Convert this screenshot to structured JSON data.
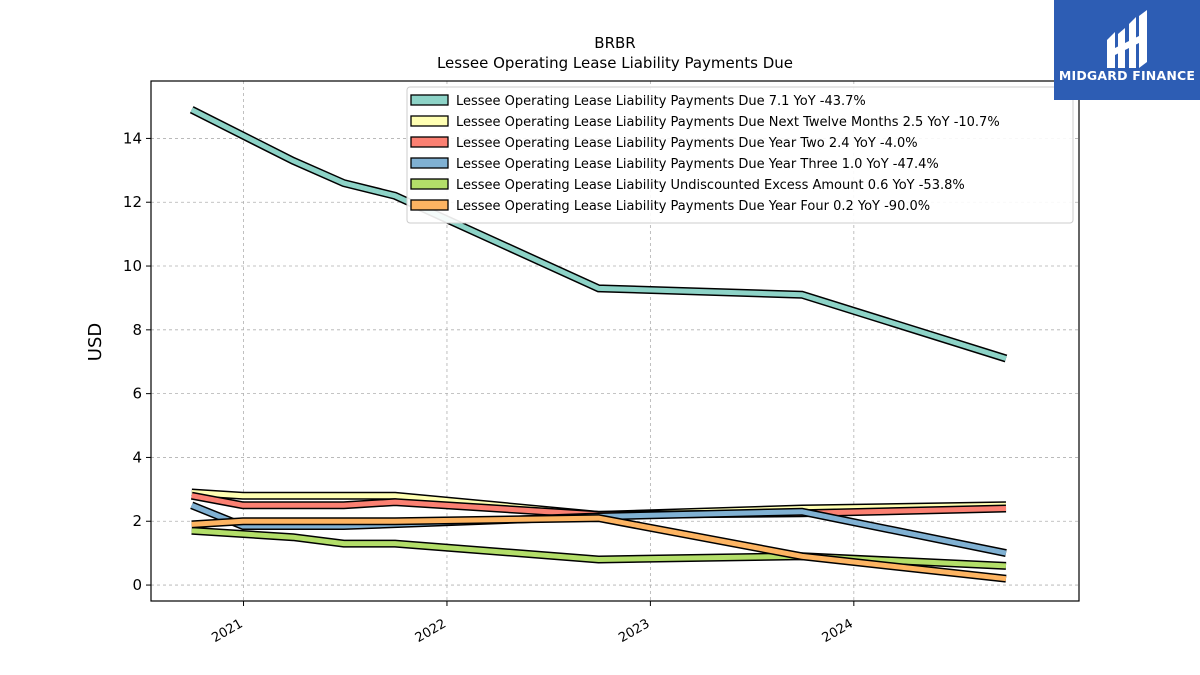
{
  "chart_data": {
    "type": "line",
    "title": "BRBR",
    "subtitle": "Lessee Operating Lease Liability Payments Due",
    "ylabel": "USD",
    "xlabel": "",
    "ylim": [
      -0.5,
      15.8
    ],
    "xlim": [
      "2020-07-19",
      "2025-02-08"
    ],
    "yticks": [
      0,
      2,
      4,
      6,
      8,
      10,
      12,
      14
    ],
    "xticks": [
      "2021-01-01",
      "2022-01-01",
      "2023-01-01",
      "2024-01-01"
    ],
    "xtick_labels": [
      "2021",
      "2022",
      "2023",
      "2024"
    ],
    "grid": true,
    "legend_position": "top-right",
    "series": [
      {
        "name": "Lessee Operating Lease Liability Payments Due  7.1 YoY -43.7%",
        "color": "#8dd3c7",
        "x": [
          "2020-09-30",
          "2021-03-31",
          "2021-06-30",
          "2021-09-30",
          "2022-09-30",
          "2023-09-30",
          "2024-09-30"
        ],
        "y": [
          14.9,
          13.3,
          12.6,
          12.2,
          9.3,
          9.1,
          7.1
        ]
      },
      {
        "name": "Lessee Operating Lease Liability Payments Due Next Twelve Months  2.5 YoY -10.7%",
        "color": "#ffffb3",
        "x": [
          "2020-09-30",
          "2020-12-31",
          "2021-09-30",
          "2022-09-30",
          "2023-09-30",
          "2024-09-30"
        ],
        "y": [
          2.9,
          2.8,
          2.8,
          2.2,
          2.4,
          2.5
        ]
      },
      {
        "name": "Lessee Operating Lease Liability Payments Due Year Two  2.4 YoY -4.0%",
        "color": "#fb8072",
        "x": [
          "2020-09-30",
          "2020-12-31",
          "2021-06-30",
          "2021-09-30",
          "2022-09-30",
          "2023-09-30",
          "2024-09-30"
        ],
        "y": [
          2.8,
          2.5,
          2.5,
          2.6,
          2.2,
          2.25,
          2.4
        ]
      },
      {
        "name": "Lessee Operating Lease Liability Payments Due Year Three  1.0 YoY -47.4%",
        "color": "#80b1d3",
        "x": [
          "2020-09-30",
          "2020-12-31",
          "2021-06-30",
          "2022-09-30",
          "2023-09-30",
          "2024-09-30"
        ],
        "y": [
          2.5,
          1.85,
          1.85,
          2.15,
          2.3,
          1.0
        ]
      },
      {
        "name": "Lessee Operating Lease Liability Undiscounted Excess Amount  0.6 YoY -53.8%",
        "color": "#b3de69",
        "x": [
          "2020-09-30",
          "2021-03-31",
          "2021-06-30",
          "2021-09-30",
          "2022-09-30",
          "2023-09-30",
          "2024-09-30"
        ],
        "y": [
          1.7,
          1.5,
          1.3,
          1.3,
          0.8,
          0.9,
          0.6
        ]
      },
      {
        "name": "Lessee Operating Lease Liability Payments Due Year Four  0.2 YoY -90.0%",
        "color": "#fdb462",
        "x": [
          "2020-09-30",
          "2020-12-31",
          "2021-09-30",
          "2022-09-30",
          "2023-09-30",
          "2024-09-30"
        ],
        "y": [
          1.9,
          2.0,
          2.0,
          2.1,
          0.9,
          0.2
        ]
      }
    ]
  },
  "brand": {
    "name": "MIDGARD FINANCE",
    "logo_icon": "midgard-logo-icon",
    "color": "#2d5db4"
  }
}
